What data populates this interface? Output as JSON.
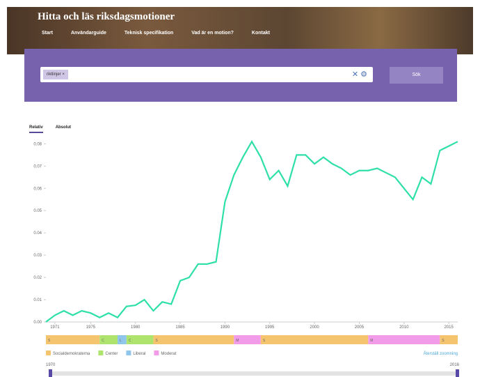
{
  "header": {
    "title": "Hitta och läs riksdagsmotioner",
    "nav": [
      "Start",
      "Användarguide",
      "Teknisk specifikation",
      "Vad är en motion?",
      "Kontakt"
    ]
  },
  "search": {
    "chip": "riktlinjer",
    "button": "Sök"
  },
  "tabs": [
    "Relativ",
    "Absolut"
  ],
  "chart_data": {
    "type": "line",
    "color": "#2ee0a8",
    "x": [
      1970,
      1971,
      1972,
      1973,
      1974,
      1975,
      1976,
      1977,
      1978,
      1979,
      1980,
      1981,
      1982,
      1983,
      1984,
      1985,
      1986,
      1987,
      1988,
      1989,
      1990,
      1991,
      1992,
      1993,
      1994,
      1995,
      1996,
      1997,
      1998,
      1999,
      2000,
      2001,
      2002,
      2003,
      2004,
      2005,
      2006,
      2007,
      2008,
      2009,
      2010,
      2011,
      2012,
      2013,
      2014,
      2015,
      2016
    ],
    "values": [
      0,
      0.003,
      0.005,
      0.003,
      0.005,
      0.004,
      0.002,
      0.004,
      0.002,
      0.007,
      0.0075,
      0.01,
      0.005,
      0.009,
      0.008,
      0.0185,
      0.02,
      0.026,
      0.026,
      0.027,
      0.054,
      0.066,
      0.074,
      0.081,
      0.074,
      0.064,
      0.068,
      0.061,
      0.075,
      0.075,
      0.071,
      0.074,
      0.071,
      0.069,
      0.066,
      0.068,
      0.068,
      0.069,
      0.067,
      0.065,
      0.06,
      0.055,
      0.065,
      0.062,
      0.077,
      0.079,
      0.081
    ],
    "xlim": [
      1970,
      2016
    ],
    "xticks": [
      1971,
      1975,
      1980,
      1985,
      1990,
      1995,
      2000,
      2005,
      2010,
      2015
    ],
    "ylim": [
      0,
      0.082
    ],
    "yticks": [
      {
        "value": 0,
        "label": "0.00"
      },
      0.01,
      0.02,
      0.03,
      0.04,
      0.05,
      0.06,
      0.07,
      0.08
    ],
    "governments": [
      {
        "party": "S",
        "start": 1970,
        "end": 1976
      },
      {
        "party": "C",
        "start": 1976,
        "end": 1978
      },
      {
        "party": "L",
        "start": 1978,
        "end": 1979
      },
      {
        "party": "C",
        "start": 1979,
        "end": 1982
      },
      {
        "party": "S",
        "start": 1982,
        "end": 1991
      },
      {
        "party": "M",
        "start": 1991,
        "end": 1994
      },
      {
        "party": "S",
        "start": 1994,
        "end": 2006
      },
      {
        "party": "M",
        "start": 2006,
        "end": 2014
      },
      {
        "party": "S",
        "start": 2014,
        "end": 2016
      }
    ],
    "legend": [
      {
        "code": "S",
        "name": "Socialdemokraterna",
        "color": "#f5c46e"
      },
      {
        "code": "C",
        "name": "Center",
        "color": "#aee46e"
      },
      {
        "code": "L",
        "name": "Liberal",
        "color": "#90c6ea"
      },
      {
        "code": "M",
        "name": "Moderat",
        "color": "#f29ce9"
      }
    ],
    "reset": "Återställ zoomning",
    "range": [
      1970,
      2016
    ]
  }
}
